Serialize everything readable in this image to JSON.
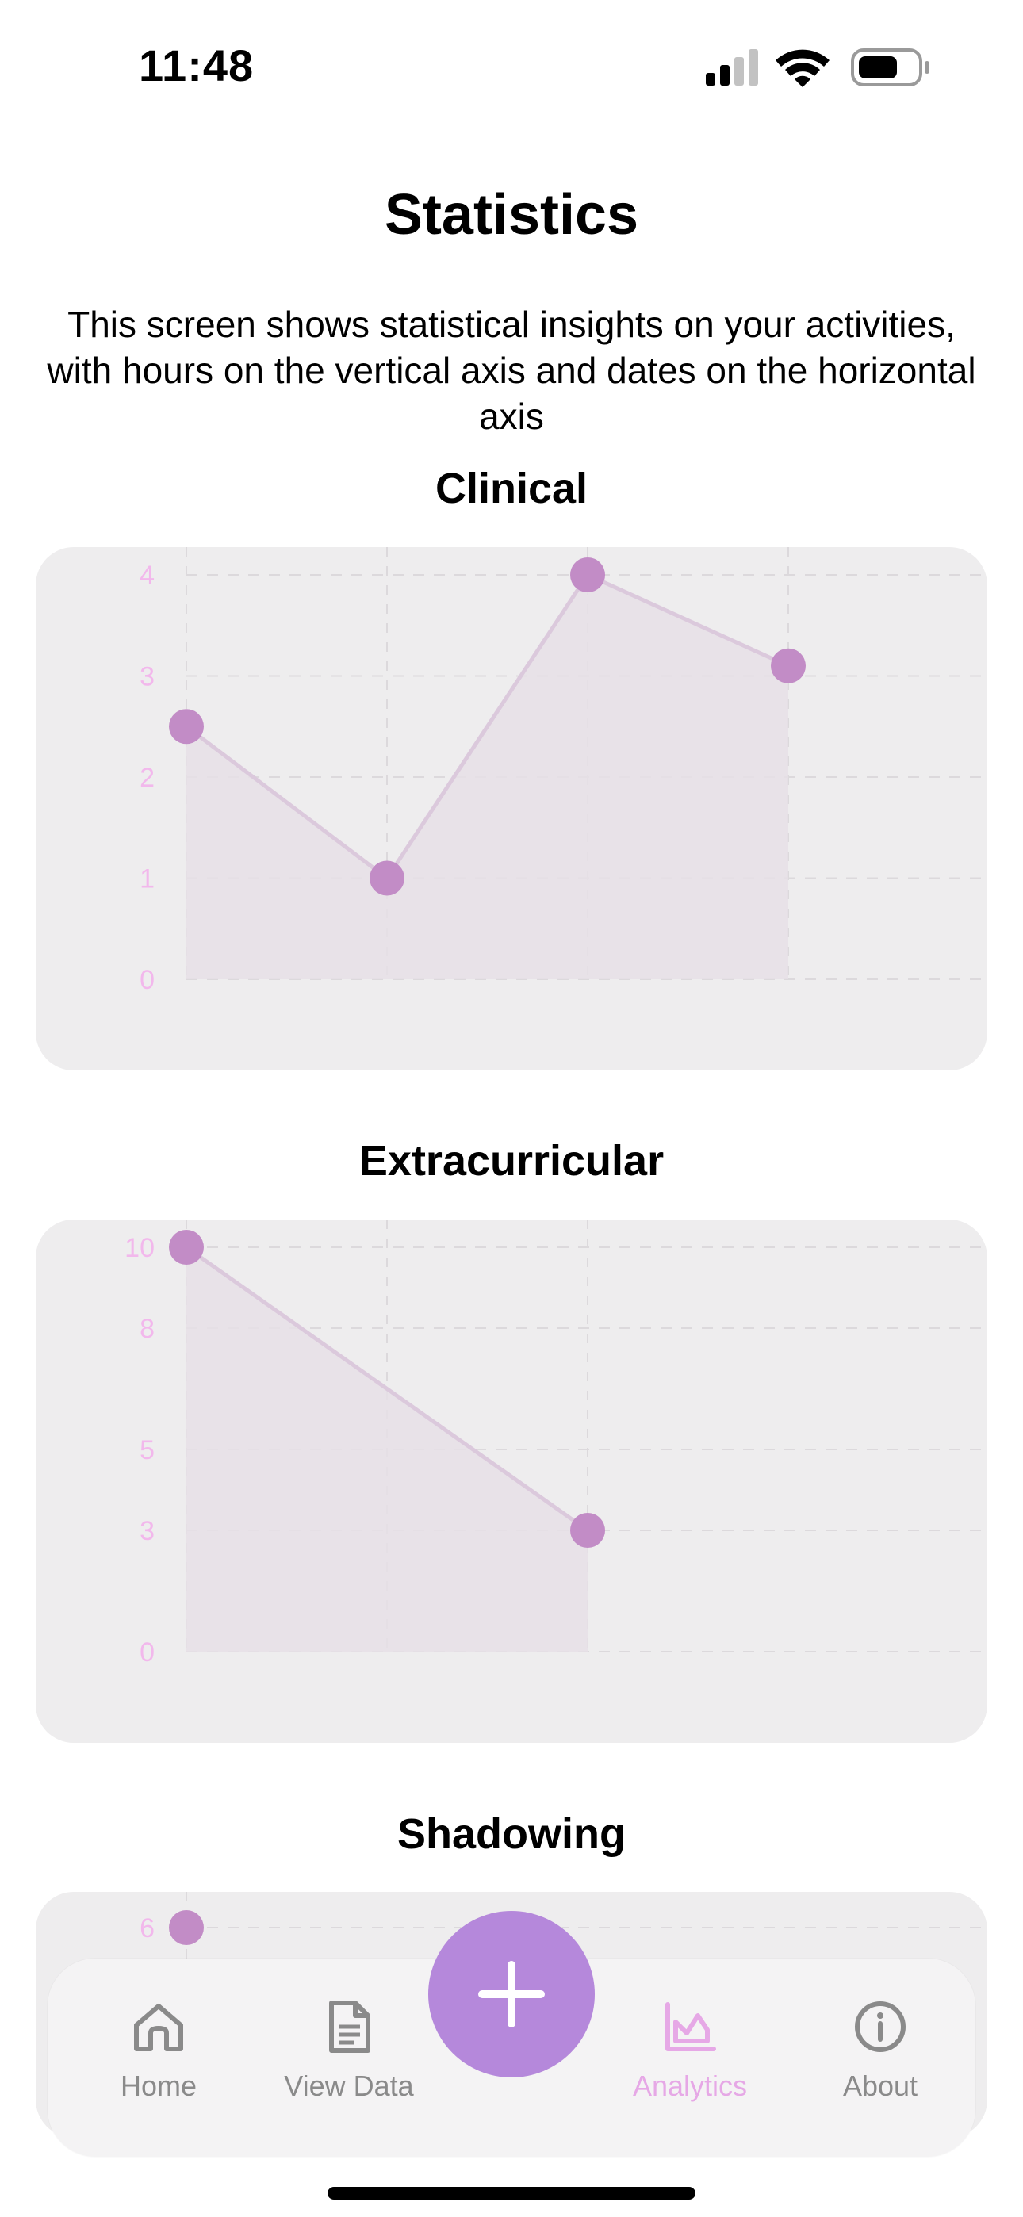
{
  "status_bar": {
    "time": "11:48"
  },
  "page": {
    "title": "Statistics",
    "description": "This screen shows statistical insights on your activities, with hours on the vertical axis and dates on the horizontal axis"
  },
  "colors": {
    "accent": "#b588db",
    "point": "#c28cc6",
    "axis_label": "#f2b8ec",
    "area_fill": "#e6dfe6",
    "line": "#dbc9dc",
    "card_bg": "#eeedee",
    "tab_active": "#e6a8e6",
    "tab_inactive": "#8a8a8a"
  },
  "chart_data": [
    {
      "type": "area",
      "title": "Clinical",
      "x": [
        "",
        "",
        "",
        ""
      ],
      "series": [
        {
          "values": [
            2.5,
            1,
            4,
            3.1
          ]
        }
      ],
      "yticks": [
        "0",
        "1",
        "2",
        "3",
        "4"
      ],
      "ylim": [
        0,
        4
      ],
      "grid": true
    },
    {
      "type": "area",
      "title": "Extracurricular",
      "x": [
        "",
        "",
        ""
      ],
      "series": [
        {
          "values": [
            10,
            null,
            3
          ]
        }
      ],
      "yticks": [
        "0",
        "3",
        "5",
        "8",
        "10"
      ],
      "ylim": [
        0,
        10
      ],
      "grid": true
    },
    {
      "type": "area",
      "title": "Shadowing",
      "x": [
        ""
      ],
      "series": [
        {
          "values": [
            6
          ]
        }
      ],
      "yticks": [
        "6"
      ],
      "ylim": [
        0,
        6
      ],
      "grid": true
    }
  ],
  "tab_bar": {
    "items": [
      {
        "label": "Home",
        "icon": "home-icon"
      },
      {
        "label": "View Data",
        "icon": "document-icon"
      },
      {
        "label": "Analytics",
        "icon": "chart-icon",
        "active": true
      },
      {
        "label": "About",
        "icon": "info-icon"
      }
    ],
    "fab_icon": "plus-icon"
  }
}
